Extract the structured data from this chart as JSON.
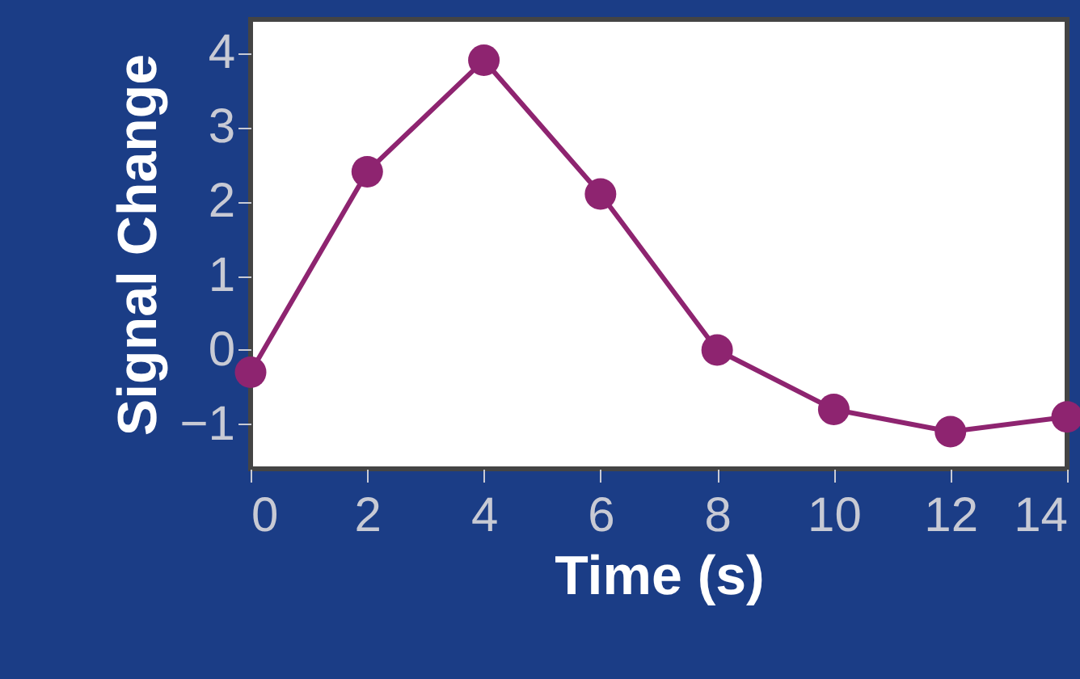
{
  "chart_data": {
    "type": "line",
    "xlabel": "Time (s)",
    "ylabel": "Signal Change",
    "x": [
      0,
      2,
      4,
      6,
      8,
      10,
      12,
      14
    ],
    "series": [
      {
        "color": "#8e2470",
        "values": [
          -0.3,
          2.4,
          3.9,
          2.1,
          0,
          -0.8,
          -1.1,
          -0.9
        ]
      }
    ],
    "xlim": [
      0,
      14
    ],
    "xticks": [
      0,
      2,
      4,
      6,
      8,
      10,
      12,
      14
    ],
    "ylim": [
      -1.6,
      4.45
    ],
    "yticks": [
      -1,
      0,
      1,
      2,
      3,
      4
    ],
    "marker": "circle",
    "line_style": "solid",
    "grid": false
  }
}
